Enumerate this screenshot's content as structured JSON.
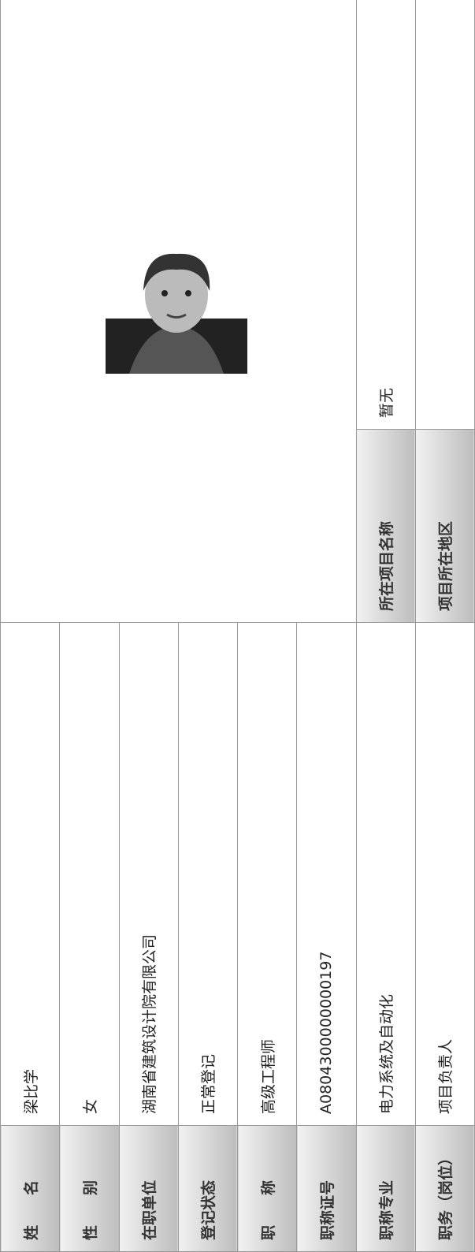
{
  "rows": [
    {
      "label": "姓　　名",
      "value": "梁比学"
    },
    {
      "label": "性　　别",
      "value": "女"
    },
    {
      "label": "在职单位",
      "value": "湖南省建筑设计院有限公司"
    },
    {
      "label": "登记状态",
      "value": "正常登记"
    },
    {
      "label": "职　　称",
      "value": "高级工程师"
    },
    {
      "label": "职称证号",
      "value": "A0804300000000197"
    },
    {
      "label": "职称专业",
      "value": "电力系统及自动化"
    },
    {
      "label": "职务（岗位）",
      "value": "项目负责人"
    }
  ],
  "project": [
    {
      "label": "所在项目名称",
      "value": "暂无"
    },
    {
      "label": "项目所在地区",
      "value": ""
    }
  ]
}
